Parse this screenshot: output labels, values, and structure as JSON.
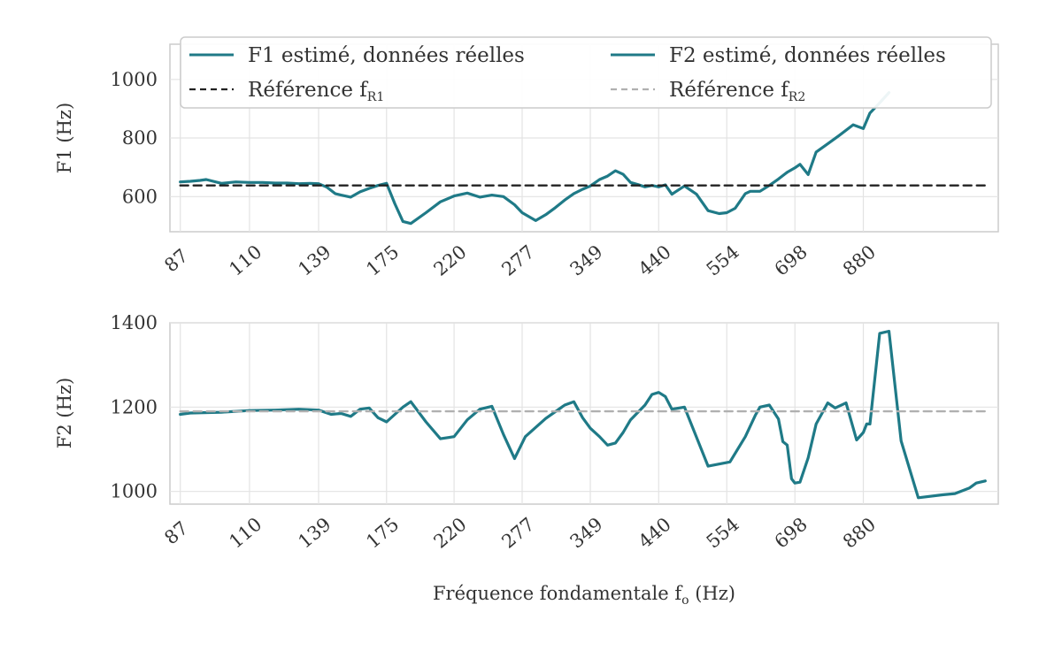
{
  "chart_data": [
    {
      "type": "line",
      "xscale": "log",
      "ylabel": "F1 (Hz)",
      "ylim": [
        480,
        1120
      ],
      "yticks": [
        600,
        800,
        1000
      ],
      "xlim": [
        84,
        1390
      ],
      "xticks": [
        87,
        110,
        139,
        175,
        220,
        277,
        349,
        440,
        554,
        698,
        880
      ],
      "xtick_labels": [
        "87",
        "110",
        "139",
        "175",
        "220",
        "277",
        "349",
        "440",
        "554",
        "698",
        "880"
      ],
      "grid": true,
      "legend": {
        "placement": "top",
        "entries": [
          {
            "label_main": "F1 estimé, données réelles",
            "label_sub": "",
            "style": "solid",
            "color": "#1f7a87"
          },
          {
            "label_main": "F2 estimé, données réelles",
            "label_sub": "",
            "style": "solid",
            "color": "#1f7a87"
          },
          {
            "label_main": "Référence f",
            "label_sub": "R1",
            "style": "dashed",
            "color": "#222222"
          },
          {
            "label_main": "Référence f",
            "label_sub": "R2",
            "style": "dashed",
            "color": "#b0b0b0"
          }
        ]
      },
      "series": [
        {
          "role": "estimate",
          "color": "#1f7a87",
          "x": [
            87,
            90,
            93,
            95,
            100,
            105,
            110,
            115,
            120,
            125,
            130,
            135,
            139,
            143,
            147,
            150,
            155,
            160,
            165,
            170,
            175,
            180,
            185,
            190,
            200,
            210,
            220,
            230,
            240,
            250,
            260,
            270,
            277,
            290,
            300,
            310,
            320,
            330,
            340,
            349,
            360,
            370,
            380,
            390,
            400,
            410,
            420,
            430,
            440,
            450,
            460,
            480,
            500,
            520,
            540,
            554,
            570,
            590,
            600,
            620,
            640,
            660,
            680,
            698,
            710,
            730,
            750,
            780,
            810,
            850,
            880,
            900,
            930,
            960
          ],
          "y": [
            650,
            652,
            655,
            658,
            645,
            650,
            648,
            648,
            646,
            646,
            644,
            645,
            644,
            632,
            610,
            605,
            598,
            616,
            628,
            638,
            645,
            575,
            515,
            508,
            545,
            582,
            602,
            612,
            598,
            605,
            600,
            572,
            545,
            518,
            538,
            562,
            588,
            610,
            625,
            636,
            658,
            670,
            688,
            676,
            648,
            641,
            633,
            638,
            633,
            640,
            608,
            636,
            608,
            552,
            542,
            545,
            560,
            610,
            618,
            618,
            638,
            660,
            683,
            698,
            710,
            675,
            752,
            780,
            808,
            845,
            832,
            885,
            920,
            955
          ]
        },
        {
          "role": "reference",
          "color": "#222222",
          "dash": true,
          "x": [
            87,
            1330
          ],
          "y": [
            638,
            638
          ]
        }
      ]
    },
    {
      "type": "line",
      "xscale": "log",
      "ylabel": "F2 (Hz)",
      "xlabel_main": "Fréquence fondamentale f",
      "xlabel_sub": "o",
      "xlabel_unit": " (Hz)",
      "ylim": [
        970,
        1400
      ],
      "yticks": [
        1000,
        1200,
        1400
      ],
      "xlim": [
        84,
        1390
      ],
      "xticks": [
        87,
        110,
        139,
        175,
        220,
        277,
        349,
        440,
        554,
        698,
        880
      ],
      "xtick_labels": [
        "87",
        "110",
        "139",
        "175",
        "220",
        "277",
        "349",
        "440",
        "554",
        "698",
        "880"
      ],
      "grid": true,
      "series": [
        {
          "role": "estimate",
          "color": "#1f7a87",
          "x": [
            87,
            90,
            100,
            110,
            120,
            130,
            139,
            145,
            150,
            155,
            160,
            165,
            170,
            175,
            180,
            185,
            190,
            200,
            210,
            220,
            230,
            240,
            250,
            260,
            270,
            280,
            300,
            320,
            330,
            340,
            349,
            360,
            370,
            380,
            390,
            400,
            420,
            430,
            440,
            450,
            460,
            480,
            520,
            560,
            590,
            610,
            620,
            640,
            660,
            670,
            680,
            690,
            698,
            710,
            730,
            750,
            780,
            800,
            830,
            860,
            880,
            890,
            900,
            930,
            960,
            1000,
            1060,
            1150,
            1200,
            1260,
            1290,
            1330
          ],
          "y": [
            1183,
            1186,
            1188,
            1192,
            1193,
            1195,
            1193,
            1183,
            1185,
            1178,
            1195,
            1198,
            1175,
            1165,
            1183,
            1200,
            1213,
            1165,
            1125,
            1130,
            1170,
            1195,
            1202,
            1135,
            1078,
            1130,
            1173,
            1205,
            1213,
            1175,
            1150,
            1130,
            1110,
            1115,
            1140,
            1170,
            1205,
            1230,
            1235,
            1225,
            1195,
            1200,
            1060,
            1070,
            1130,
            1180,
            1200,
            1205,
            1172,
            1118,
            1110,
            1030,
            1020,
            1022,
            1080,
            1160,
            1210,
            1198,
            1210,
            1122,
            1140,
            1160,
            1160,
            1375,
            1380,
            1120,
            985,
            992,
            995,
            1008,
            1020,
            1025
          ]
        },
        {
          "role": "reference",
          "color": "#b0b0b0",
          "dash": true,
          "x": [
            87,
            1330
          ],
          "y": [
            1190,
            1190
          ]
        }
      ]
    }
  ]
}
